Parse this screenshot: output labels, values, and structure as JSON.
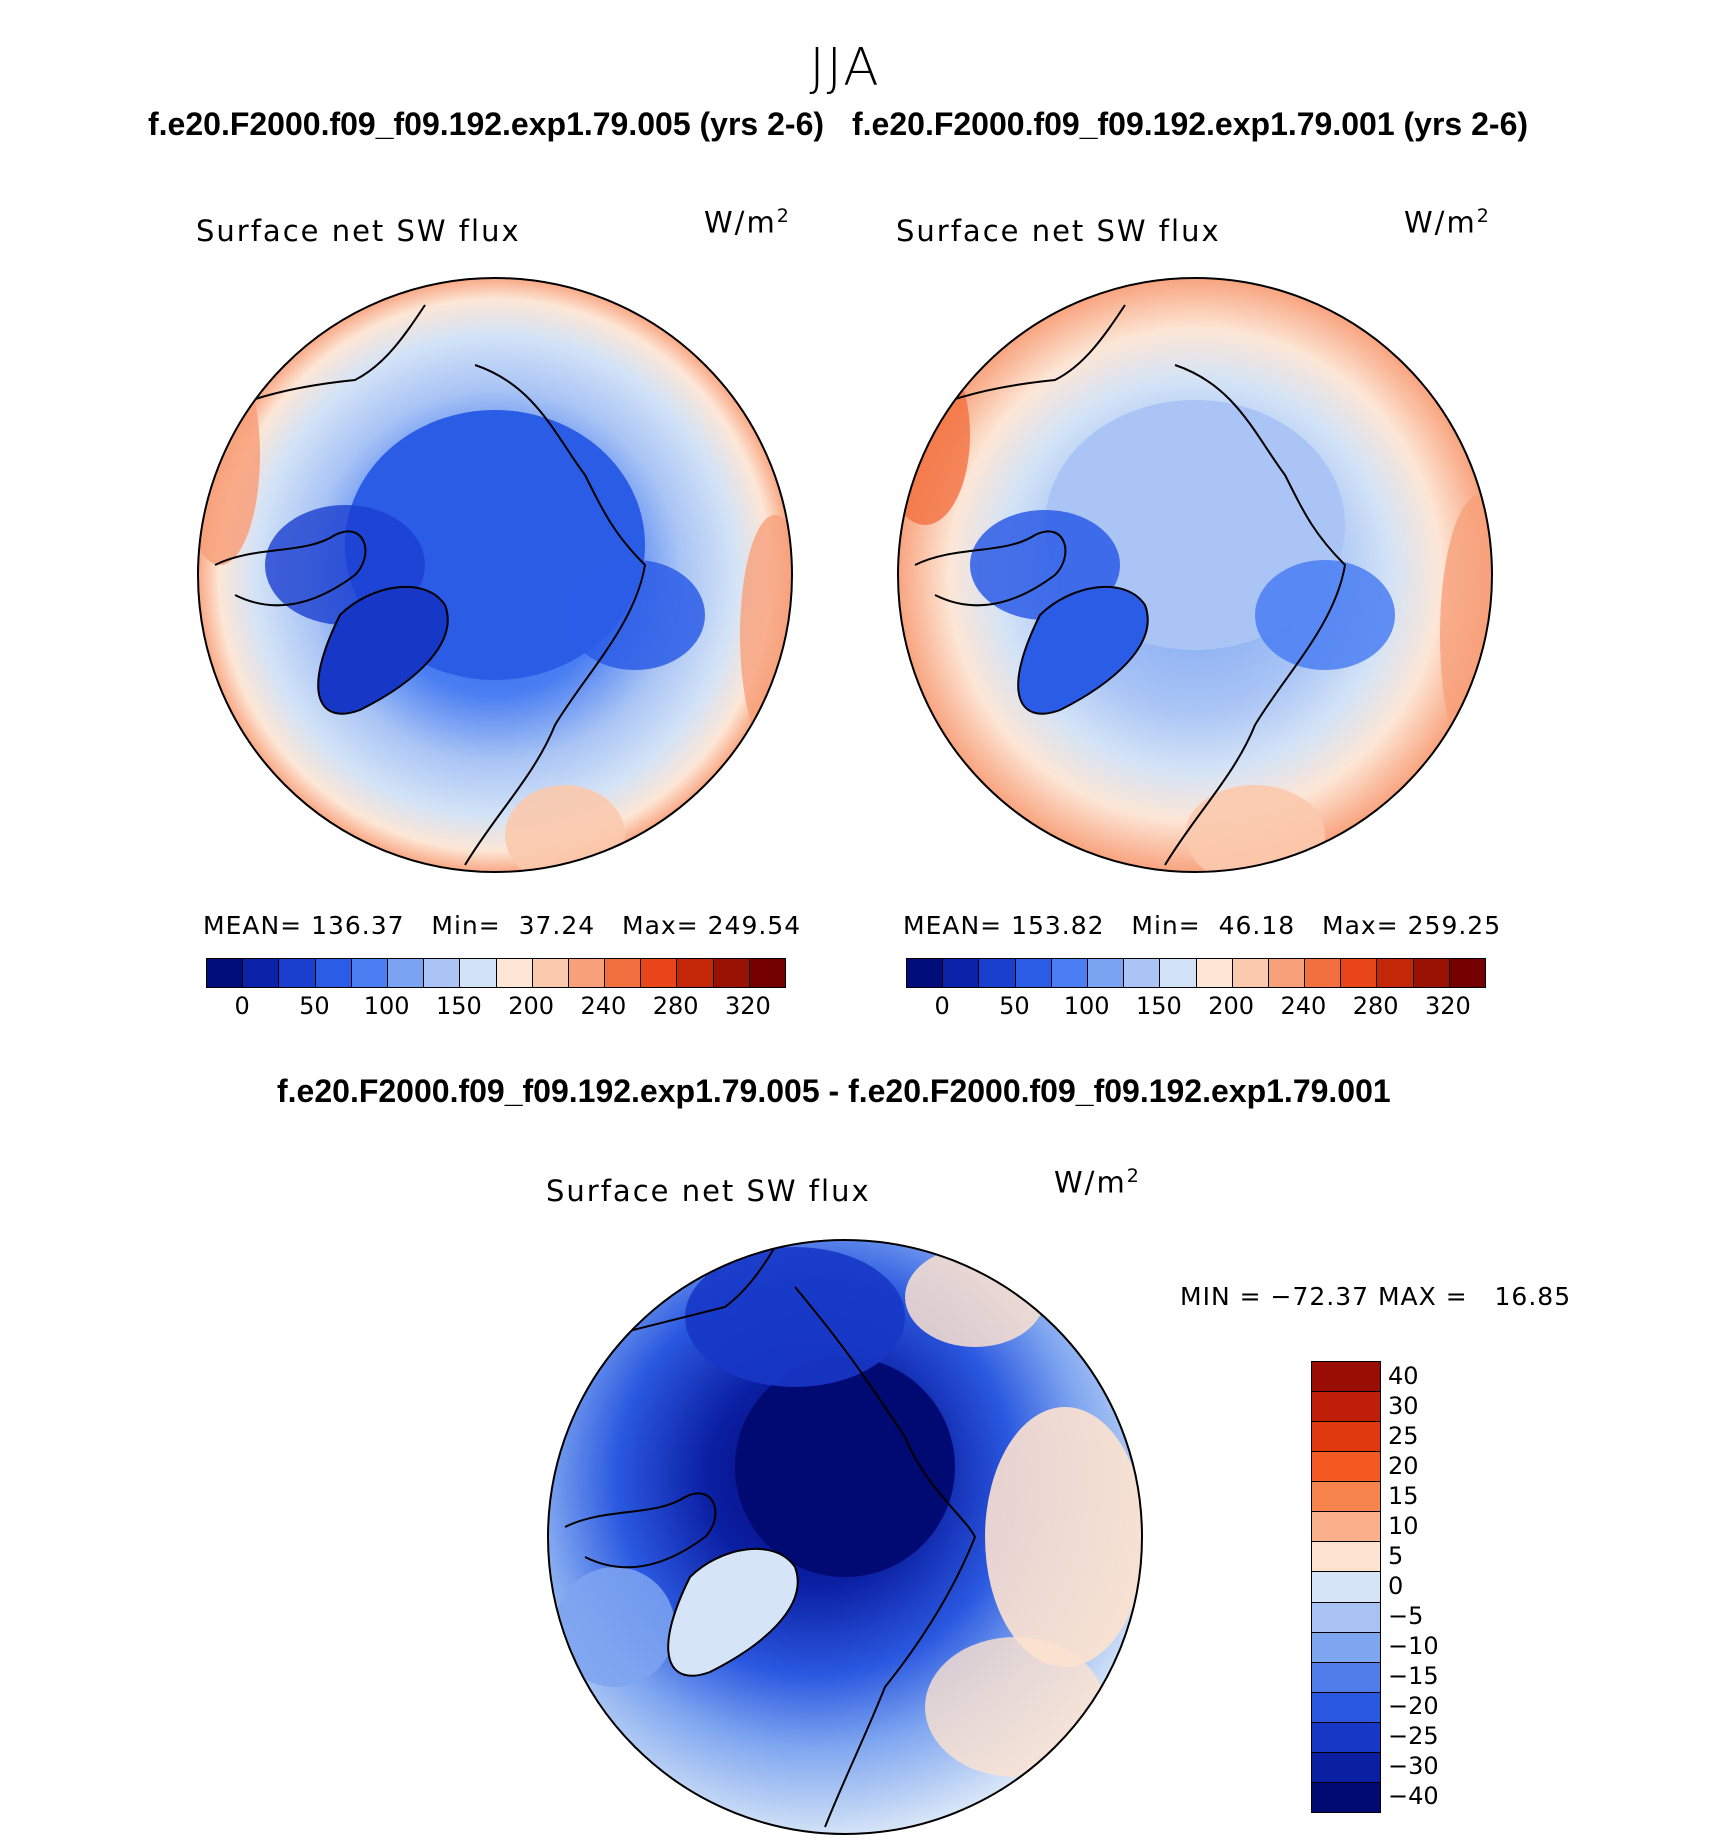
{
  "season": "JJA",
  "header": {
    "case_left": "f.e20.F2000.f09_f09.192.exp1.79.005 (yrs 2-6)",
    "case_right": "f.e20.F2000.f09_f09.192.exp1.79.001 (yrs 2-6)"
  },
  "diff_title": "f.e20.F2000.f09_f09.192.exp1.79.005 - f.e20.F2000.f09_f09.192.exp1.79.001",
  "chart_data": [
    {
      "type": "heatmap",
      "projection": "north-polar-stereographic",
      "title": "Surface net SW flux",
      "units_base": "W/m",
      "units_exp": "2",
      "stats": {
        "mean_label": "MEAN=",
        "mean": "136.37",
        "min_label": "Min=",
        "min": "37.24",
        "max_label": "Max=",
        "max": "249.54"
      },
      "colorbar": {
        "colors": [
          "#000d7a",
          "#0a23a8",
          "#1a3fcf",
          "#2b5ce6",
          "#4a7ef2",
          "#7aa3f2",
          "#a9c4f5",
          "#d3e3f7",
          "#fde6d6",
          "#fbc9ad",
          "#f8a07a",
          "#f2703f",
          "#e84618",
          "#c42608",
          "#9a1204",
          "#750000"
        ],
        "ticks": [
          "0",
          "50",
          "100",
          "150",
          "200",
          "240",
          "280",
          "320"
        ]
      },
      "regions": {
        "north_pole_value": "~60-100",
        "greenland": "~40-80",
        "low_latitude_rim": "~200-250"
      }
    },
    {
      "type": "heatmap",
      "projection": "north-polar-stereographic",
      "title": "Surface net SW flux",
      "units_base": "W/m",
      "units_exp": "2",
      "stats": {
        "mean_label": "MEAN=",
        "mean": "153.82",
        "min_label": "Min=",
        "min": "46.18",
        "max_label": "Max=",
        "max": "259.25"
      },
      "colorbar": {
        "colors": [
          "#000d7a",
          "#0a23a8",
          "#1a3fcf",
          "#2b5ce6",
          "#4a7ef2",
          "#7aa3f2",
          "#a9c4f5",
          "#d3e3f7",
          "#fde6d6",
          "#fbc9ad",
          "#f8a07a",
          "#f2703f",
          "#e84618",
          "#c42608",
          "#9a1204",
          "#750000"
        ],
        "ticks": [
          "0",
          "50",
          "100",
          "150",
          "200",
          "240",
          "280",
          "320"
        ]
      },
      "regions": {
        "north_pole_value": "~130-150",
        "greenland": "~60-100",
        "low_latitude_rim": "~200-260"
      }
    },
    {
      "type": "heatmap",
      "projection": "north-polar-stereographic",
      "title": "Surface net SW flux",
      "units_base": "W/m",
      "units_exp": "2",
      "stats": {
        "min_label": "MIN =",
        "min": "−72.37",
        "max_label": "MAX =",
        "max": "16.85"
      },
      "colorbar": {
        "colors": [
          "#9a0d05",
          "#bf1f08",
          "#e0380f",
          "#f55a22",
          "#f8844d",
          "#fab08a",
          "#fde2cf",
          "#d5e4f7",
          "#a8c3f3",
          "#7ea5f0",
          "#4f7eea",
          "#2a58e0",
          "#1737c7",
          "#0b1fa3",
          "#000a72"
        ],
        "ticks": [
          "40",
          "30",
          "25",
          "20",
          "15",
          "10",
          "5",
          "0",
          "−5",
          "−10",
          "−15",
          "−20",
          "−25",
          "−30",
          "−40"
        ]
      },
      "regions": {
        "arctic_ocean": "~-40",
        "greenland_interior": "~-5",
        "rim": "~0-10"
      }
    }
  ]
}
